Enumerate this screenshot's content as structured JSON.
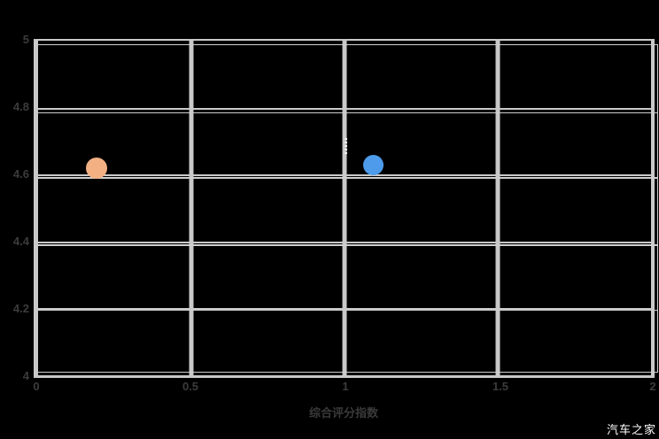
{
  "chart_data": {
    "type": "scatter",
    "title": "",
    "xlabel": "综合评分指数",
    "ylabel": "",
    "xlim": [
      0,
      2
    ],
    "ylim": [
      4,
      5
    ],
    "x_ticks": [
      "0",
      "0.5",
      "1",
      "1.5",
      "2"
    ],
    "y_ticks": [
      "5",
      "4.8",
      "4.6",
      "4.4",
      "4.2",
      "4"
    ],
    "grid": true,
    "grid_style": "doubled light-gray lines on black plot background",
    "legend": "none",
    "series": [
      {
        "name": "orange-series",
        "color": "#f2b083",
        "points": [
          {
            "x": 0.2,
            "y": 4.62
          }
        ]
      },
      {
        "name": "blue-series",
        "color": "#4d9bea",
        "points": [
          {
            "x": 1.1,
            "y": 4.63
          }
        ]
      }
    ],
    "background": "#000000",
    "gridline_color": "#c9c9c9",
    "tick_label_color": "#3c3c3c"
  },
  "axes": {
    "y": {
      "ticks": [
        "5",
        "4.8",
        "4.6",
        "4.4",
        "4.2",
        "4"
      ]
    },
    "x": {
      "ticks": [
        "0",
        "0.5",
        "1",
        "1.5",
        "2"
      ],
      "title": "综合评分指数"
    }
  },
  "watermark": {
    "text": "汽车之家",
    "color": "#ffffff"
  }
}
